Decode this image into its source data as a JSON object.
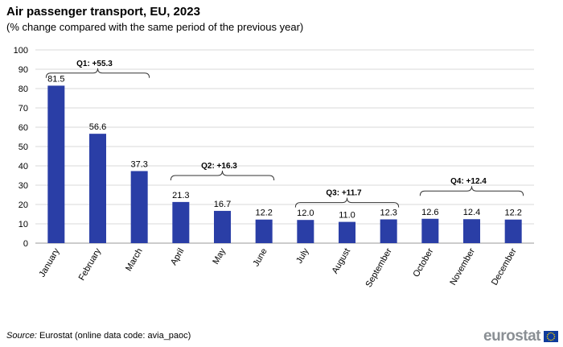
{
  "header": {
    "title": "Air passenger transport, EU, 2023",
    "subtitle": "(% change compared with the same period of the previous year)"
  },
  "footer": {
    "source_label": "Source:",
    "source_text": "Eurostat (online data code: avia_paoc)",
    "logo_text": "eurostat"
  },
  "colors": {
    "bar": "#2a3ea6",
    "grid": "#d9d9d9",
    "bracket": "#333333"
  },
  "chart_data": {
    "type": "bar",
    "title": "Air passenger transport, EU, 2023",
    "subtitle": "(% change compared with the same period of the previous year)",
    "xlabel": "",
    "ylabel": "",
    "ylim": [
      0,
      100
    ],
    "yticks": [
      0,
      10,
      20,
      30,
      40,
      50,
      60,
      70,
      80,
      90,
      100
    ],
    "grid": true,
    "categories": [
      "January",
      "February",
      "March",
      "April",
      "May",
      "June",
      "July",
      "August",
      "September",
      "October",
      "November",
      "December"
    ],
    "values": [
      81.5,
      56.6,
      37.3,
      21.3,
      16.7,
      12.2,
      12.0,
      11.0,
      12.3,
      12.6,
      12.4,
      12.2
    ],
    "value_labels": [
      "81.5",
      "56.6",
      "37.3",
      "21.3",
      "16.7",
      "12.2",
      "12.0",
      "11.0",
      "12.3",
      "12.6",
      "12.4",
      "12.2"
    ],
    "quarter_annotations": [
      {
        "label": "Q1: +55.3",
        "value": 55.3,
        "from": 0,
        "to": 2,
        "bracket_level": 88
      },
      {
        "label": "Q2: +16.3",
        "value": 16.3,
        "from": 3,
        "to": 5,
        "bracket_level": 35
      },
      {
        "label": "Q3: +11.7",
        "value": 11.7,
        "from": 6,
        "to": 8,
        "bracket_level": 21
      },
      {
        "label": "Q4: +12.4",
        "value": 12.4,
        "from": 9,
        "to": 11,
        "bracket_level": 27
      }
    ]
  }
}
